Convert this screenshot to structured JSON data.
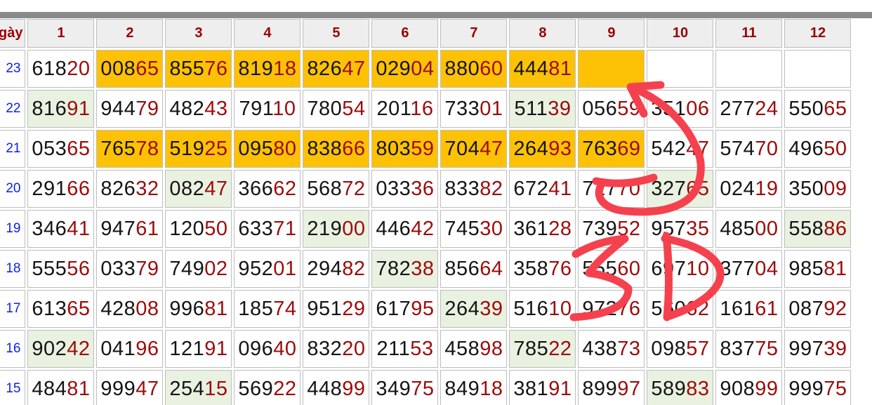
{
  "colors": {
    "bar": "#8a8a8a",
    "headerbg": "#eeeeee",
    "border": "#bdbdbd",
    "header-red": "#9b0000",
    "digit-black": "#141414",
    "digit-red": "#9e0b0b",
    "day-blue": "#0b1fe8",
    "orange": "#fdc106",
    "green": "#e9f1e1",
    "annot": "#f5414e"
  },
  "table": {
    "day_header": "gày",
    "columns": [
      "1",
      "2",
      "3",
      "4",
      "5",
      "6",
      "7",
      "8",
      "9",
      "10",
      "11",
      "12"
    ],
    "rows": [
      {
        "day": "23",
        "cells": [
          {
            "v": "61820",
            "bg": "white"
          },
          {
            "v": "00865",
            "bg": "orange"
          },
          {
            "v": "85576",
            "bg": "orange"
          },
          {
            "v": "81918",
            "bg": "orange"
          },
          {
            "v": "82647",
            "bg": "orange"
          },
          {
            "v": "02904",
            "bg": "orange"
          },
          {
            "v": "88060",
            "bg": "orange"
          },
          {
            "v": "44481",
            "bg": "orange"
          },
          {
            "v": "",
            "bg": "orange"
          },
          {
            "v": "",
            "bg": "white"
          },
          {
            "v": "",
            "bg": "white"
          },
          {
            "v": "",
            "bg": "white"
          }
        ]
      },
      {
        "day": "22",
        "cells": [
          {
            "v": "81691",
            "bg": "green"
          },
          {
            "v": "94479",
            "bg": "white"
          },
          {
            "v": "48243",
            "bg": "white"
          },
          {
            "v": "79110",
            "bg": "white"
          },
          {
            "v": "78054",
            "bg": "white"
          },
          {
            "v": "20116",
            "bg": "white"
          },
          {
            "v": "73301",
            "bg": "white"
          },
          {
            "v": "51139",
            "bg": "green"
          },
          {
            "v": "05659",
            "bg": "white"
          },
          {
            "v": "35106",
            "bg": "white"
          },
          {
            "v": "27724",
            "bg": "white"
          },
          {
            "v": "55065",
            "bg": "white"
          }
        ]
      },
      {
        "day": "21",
        "cells": [
          {
            "v": "05365",
            "bg": "white"
          },
          {
            "v": "76578",
            "bg": "orange"
          },
          {
            "v": "51925",
            "bg": "orange"
          },
          {
            "v": "09580",
            "bg": "orange"
          },
          {
            "v": "83866",
            "bg": "orange"
          },
          {
            "v": "80359",
            "bg": "orange"
          },
          {
            "v": "70447",
            "bg": "orange"
          },
          {
            "v": "26493",
            "bg": "orange"
          },
          {
            "v": "76369",
            "bg": "orange"
          },
          {
            "v": "54247",
            "bg": "white"
          },
          {
            "v": "57470",
            "bg": "white"
          },
          {
            "v": "49650",
            "bg": "white"
          }
        ]
      },
      {
        "day": "20",
        "cells": [
          {
            "v": "29166",
            "bg": "white"
          },
          {
            "v": "82632",
            "bg": "white"
          },
          {
            "v": "08247",
            "bg": "green"
          },
          {
            "v": "36662",
            "bg": "white"
          },
          {
            "v": "56872",
            "bg": "white"
          },
          {
            "v": "03336",
            "bg": "white"
          },
          {
            "v": "83382",
            "bg": "white"
          },
          {
            "v": "67241",
            "bg": "white"
          },
          {
            "v": "71770",
            "bg": "white"
          },
          {
            "v": "32765",
            "bg": "green"
          },
          {
            "v": "02419",
            "bg": "white"
          },
          {
            "v": "35009",
            "bg": "white"
          }
        ]
      },
      {
        "day": "19",
        "cells": [
          {
            "v": "34641",
            "bg": "white"
          },
          {
            "v": "94761",
            "bg": "white"
          },
          {
            "v": "12050",
            "bg": "white"
          },
          {
            "v": "63371",
            "bg": "white"
          },
          {
            "v": "21900",
            "bg": "green"
          },
          {
            "v": "44642",
            "bg": "white"
          },
          {
            "v": "74530",
            "bg": "white"
          },
          {
            "v": "36128",
            "bg": "white"
          },
          {
            "v": "73952",
            "bg": "white"
          },
          {
            "v": "95735",
            "bg": "white"
          },
          {
            "v": "48500",
            "bg": "white"
          },
          {
            "v": "55886",
            "bg": "green"
          }
        ]
      },
      {
        "day": "18",
        "cells": [
          {
            "v": "55556",
            "bg": "white"
          },
          {
            "v": "03379",
            "bg": "white"
          },
          {
            "v": "74902",
            "bg": "white"
          },
          {
            "v": "95201",
            "bg": "white"
          },
          {
            "v": "29482",
            "bg": "white"
          },
          {
            "v": "78238",
            "bg": "green"
          },
          {
            "v": "85664",
            "bg": "white"
          },
          {
            "v": "35876",
            "bg": "white"
          },
          {
            "v": "55560",
            "bg": "white"
          },
          {
            "v": "69710",
            "bg": "white"
          },
          {
            "v": "37704",
            "bg": "white"
          },
          {
            "v": "98581",
            "bg": "white"
          }
        ]
      },
      {
        "day": "17",
        "cells": [
          {
            "v": "61365",
            "bg": "white"
          },
          {
            "v": "42808",
            "bg": "white"
          },
          {
            "v": "99681",
            "bg": "white"
          },
          {
            "v": "18574",
            "bg": "white"
          },
          {
            "v": "95129",
            "bg": "white"
          },
          {
            "v": "61795",
            "bg": "white"
          },
          {
            "v": "26439",
            "bg": "green"
          },
          {
            "v": "51610",
            "bg": "white"
          },
          {
            "v": "97276",
            "bg": "white"
          },
          {
            "v": "56062",
            "bg": "white"
          },
          {
            "v": "16161",
            "bg": "white"
          },
          {
            "v": "08792",
            "bg": "white"
          }
        ]
      },
      {
        "day": "16",
        "cells": [
          {
            "v": "90242",
            "bg": "green"
          },
          {
            "v": "04196",
            "bg": "white"
          },
          {
            "v": "12191",
            "bg": "white"
          },
          {
            "v": "09640",
            "bg": "white"
          },
          {
            "v": "83220",
            "bg": "white"
          },
          {
            "v": "21153",
            "bg": "white"
          },
          {
            "v": "45898",
            "bg": "white"
          },
          {
            "v": "78522",
            "bg": "green"
          },
          {
            "v": "43873",
            "bg": "white"
          },
          {
            "v": "09857",
            "bg": "white"
          },
          {
            "v": "83775",
            "bg": "white"
          },
          {
            "v": "99739",
            "bg": "white"
          }
        ]
      },
      {
        "day": "15",
        "cells": [
          {
            "v": "48481",
            "bg": "white"
          },
          {
            "v": "99947",
            "bg": "white"
          },
          {
            "v": "25415",
            "bg": "green"
          },
          {
            "v": "56922",
            "bg": "white"
          },
          {
            "v": "44899",
            "bg": "white"
          },
          {
            "v": "34975",
            "bg": "white"
          },
          {
            "v": "84918",
            "bg": "white"
          },
          {
            "v": "38191",
            "bg": "white"
          },
          {
            "v": "89997",
            "bg": "white"
          },
          {
            "v": "58983",
            "bg": "green"
          },
          {
            "v": "90899",
            "bg": "white"
          },
          {
            "v": "99975",
            "bg": "white"
          }
        ]
      }
    ]
  },
  "annotation": {
    "color": "#f5414e",
    "text": "3D"
  }
}
